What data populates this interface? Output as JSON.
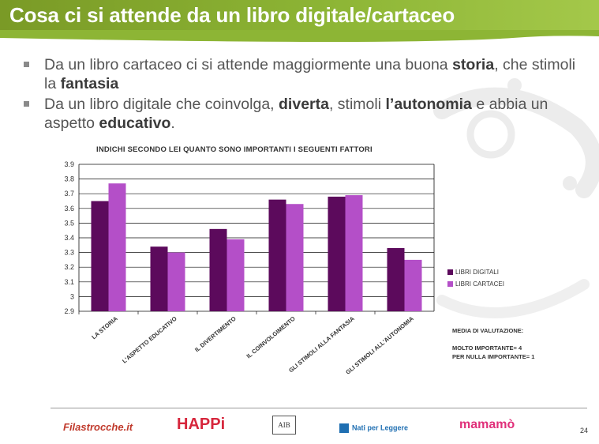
{
  "slide": {
    "title": "Cosa ci si attende da un libro digitale/cartaceo",
    "page_number": "24"
  },
  "bullets": [
    {
      "segments": [
        {
          "text": "Da un libro cartaceo ci si attende maggiormente una buona ",
          "bold": false
        },
        {
          "text": "storia",
          "bold": true
        },
        {
          "text": ", che stimoli la ",
          "bold": false
        },
        {
          "text": "fantasia",
          "bold": true
        }
      ]
    },
    {
      "segments": [
        {
          "text": "Da un libro digitale che coinvolga, ",
          "bold": false
        },
        {
          "text": "diverta",
          "bold": true
        },
        {
          "text": ", stimoli ",
          "bold": false
        },
        {
          "text": "l’autonomia",
          "bold": true
        },
        {
          "text": " e abbia un aspetto ",
          "bold": false
        },
        {
          "text": "educativo",
          "bold": true
        },
        {
          "text": ".",
          "bold": false
        }
      ]
    }
  ],
  "chart_data": {
    "type": "bar",
    "title": "INDICHI SECONDO LEI QUANTO SONO IMPORTANTI I SEGUENTI FATTORI",
    "categories": [
      "LA STORIA",
      "L'ASPETTO EDUCATIVO",
      "IL DIVERTIMENTO",
      "IL COINVOLGIMENTO",
      "GLI STIMOLI ALLA FANTASIA",
      "GLI STIMOLI ALL'AUTONOMIA"
    ],
    "series": [
      {
        "name": "LIBRI DIGITALI",
        "color": "#5c0a5c",
        "values": [
          3.65,
          3.34,
          3.46,
          3.66,
          3.68,
          3.33
        ]
      },
      {
        "name": "LIBRI CARTACEI",
        "color": "#b44fc8",
        "values": [
          3.77,
          3.3,
          3.39,
          3.63,
          3.69,
          3.25
        ]
      }
    ],
    "ylim": [
      2.9,
      3.9
    ],
    "yticks": [
      "2.9",
      "3",
      "3.1",
      "3.2",
      "3.3",
      "3.4",
      "3.5",
      "3.6",
      "3.7",
      "3.8",
      "3.9"
    ],
    "grid": true,
    "legend_position": "right"
  },
  "notes": {
    "heading": "MEDIA DI VALUTAZIONE:",
    "line1": "MOLTO IMPORTANTE= 4",
    "line2": "PER NULLA IMPORTANTE= 1"
  },
  "footer_logos": [
    {
      "text": "Filastrocche.it",
      "color": "#c0392b"
    },
    {
      "text": "HAPPi",
      "color": "#d6263c"
    },
    {
      "text": "AIB",
      "color": "#333333"
    },
    {
      "text": "Nati per Leggere",
      "color": "#1f6fb2"
    },
    {
      "text": "mamamò",
      "color": "#e0307a"
    }
  ]
}
